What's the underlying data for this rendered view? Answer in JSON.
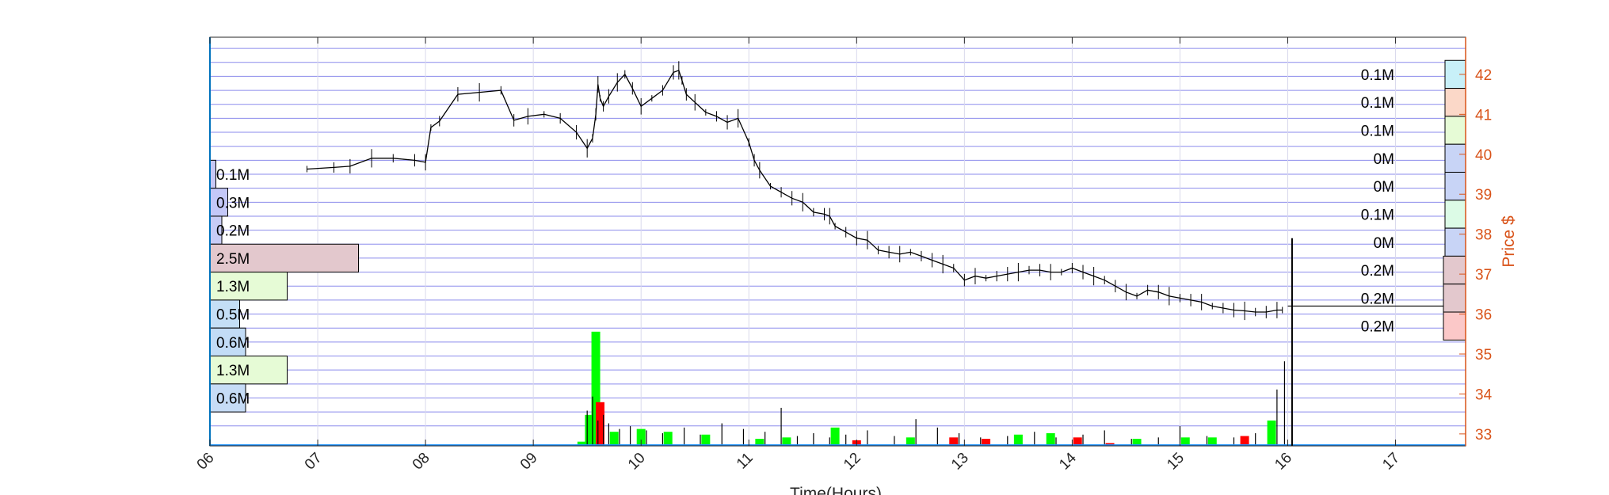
{
  "chart_data": {
    "type": "line",
    "title": "",
    "xlabel": "Time(Hours)",
    "ylabel": "Price $",
    "x_ticks": [
      "06",
      "07",
      "08",
      "09",
      "10",
      "11",
      "12",
      "13",
      "14",
      "15",
      "16",
      "17"
    ],
    "y_ticks": [
      33,
      34,
      35,
      36,
      37,
      38,
      39,
      40,
      41,
      42
    ],
    "xlim": [
      6.0,
      17.65
    ],
    "ylim": [
      32.7,
      42.93
    ],
    "grid": true,
    "colors": {
      "price": "#000000",
      "price_axis": "#d95319",
      "grid": "#6f6fe8",
      "volume_up": "#00ff00",
      "volume_down": "#ff0000"
    },
    "price_series": {
      "x": [
        6.9,
        7.15,
        7.3,
        7.5,
        7.7,
        7.9,
        8.0,
        8.05,
        8.13,
        8.3,
        8.5,
        8.7,
        8.82,
        8.95,
        9.1,
        9.25,
        9.4,
        9.5,
        9.55,
        9.58,
        9.6,
        9.62,
        9.65,
        9.7,
        9.78,
        9.85,
        9.92,
        10.0,
        10.1,
        10.2,
        10.3,
        10.35,
        10.38,
        10.42,
        10.5,
        10.6,
        10.7,
        10.8,
        10.9,
        11.0,
        11.05,
        11.1,
        11.2,
        11.3,
        11.4,
        11.5,
        11.6,
        11.7,
        11.75,
        11.8,
        11.9,
        12.0,
        12.1,
        12.2,
        12.3,
        12.4,
        12.5,
        12.6,
        12.7,
        12.8,
        12.9,
        13.0,
        13.1,
        13.2,
        13.3,
        13.4,
        13.5,
        13.6,
        13.7,
        13.8,
        13.9,
        14.0,
        14.1,
        14.2,
        14.3,
        14.4,
        14.5,
        14.6,
        14.7,
        14.8,
        14.9,
        15.0,
        15.1,
        15.2,
        15.3,
        15.4,
        15.5,
        15.6,
        15.7,
        15.8,
        15.9,
        15.95
      ],
      "y": [
        39.63,
        39.67,
        39.7,
        39.9,
        39.9,
        39.85,
        39.8,
        40.67,
        40.83,
        41.5,
        41.55,
        41.6,
        40.85,
        40.95,
        41.0,
        40.9,
        40.55,
        40.15,
        40.4,
        41.0,
        41.75,
        41.4,
        41.2,
        41.45,
        41.8,
        42.0,
        41.65,
        41.2,
        41.4,
        41.6,
        42.05,
        42.1,
        41.85,
        41.5,
        41.3,
        41.05,
        40.95,
        40.8,
        40.9,
        40.3,
        39.85,
        39.6,
        39.2,
        39.05,
        38.9,
        38.8,
        38.55,
        38.5,
        38.45,
        38.2,
        38.05,
        37.9,
        37.85,
        37.6,
        37.55,
        37.5,
        37.55,
        37.45,
        37.35,
        37.25,
        37.15,
        36.85,
        36.95,
        36.9,
        36.95,
        37.0,
        37.05,
        37.1,
        37.1,
        37.05,
        37.05,
        37.15,
        37.05,
        36.95,
        36.85,
        36.7,
        36.55,
        36.45,
        36.6,
        36.55,
        36.45,
        36.4,
        36.35,
        36.3,
        36.2,
        36.15,
        36.1,
        36.08,
        36.05,
        36.05,
        36.1,
        36.1
      ]
    },
    "volume_series": {
      "up": [
        {
          "x": 9.45,
          "v": 0.3
        },
        {
          "x": 9.52,
          "v": 2.2
        },
        {
          "x": 9.58,
          "v": 8.1
        },
        {
          "x": 9.75,
          "v": 1.0
        },
        {
          "x": 10.0,
          "v": 1.2
        },
        {
          "x": 10.25,
          "v": 1.0
        },
        {
          "x": 10.6,
          "v": 0.8
        },
        {
          "x": 11.1,
          "v": 0.5
        },
        {
          "x": 11.35,
          "v": 0.6
        },
        {
          "x": 11.8,
          "v": 1.3
        },
        {
          "x": 12.5,
          "v": 0.6
        },
        {
          "x": 13.5,
          "v": 0.8
        },
        {
          "x": 13.8,
          "v": 0.9
        },
        {
          "x": 14.6,
          "v": 0.5
        },
        {
          "x": 15.05,
          "v": 0.6
        },
        {
          "x": 15.3,
          "v": 0.6
        },
        {
          "x": 15.85,
          "v": 1.8
        }
      ],
      "down": [
        {
          "x": 9.62,
          "v": 3.1
        },
        {
          "x": 12.0,
          "v": 0.4
        },
        {
          "x": 12.9,
          "v": 0.6
        },
        {
          "x": 13.2,
          "v": 0.5
        },
        {
          "x": 14.05,
          "v": 0.6
        },
        {
          "x": 14.35,
          "v": 0.2
        },
        {
          "x": 15.6,
          "v": 0.7
        }
      ]
    },
    "volume_profile_left": [
      {
        "price": 39.5,
        "label": "0.1M",
        "value": 0.1,
        "color": "#c8c8f5"
      },
      {
        "price": 38.8,
        "label": "0.3M",
        "value": 0.3,
        "color": "#c4c8f8"
      },
      {
        "price": 38.1,
        "label": "0.2M",
        "value": 0.2,
        "color": "#c8ccf6"
      },
      {
        "price": 37.4,
        "label": "2.5M",
        "value": 2.5,
        "color": "#e3c8cd"
      },
      {
        "price": 36.7,
        "label": "1.3M",
        "value": 1.3,
        "color": "#e6fbd6"
      },
      {
        "price": 36.0,
        "label": "0.5M",
        "value": 0.5,
        "color": "#c4dff6"
      },
      {
        "price": 35.3,
        "label": "0.6M",
        "value": 0.6,
        "color": "#c2dcf6"
      },
      {
        "price": 34.6,
        "label": "1.3M",
        "value": 1.3,
        "color": "#e6fbd6"
      },
      {
        "price": 33.9,
        "label": "0.6M",
        "value": 0.6,
        "color": "#c6dcf6"
      }
    ],
    "volume_profile_right": [
      {
        "price": 42.0,
        "label": "0.1M",
        "value": 0.1,
        "color": "#c8f0f8"
      },
      {
        "price": 41.3,
        "label": "0.1M",
        "value": 0.1,
        "color": "#fbd8c8"
      },
      {
        "price": 40.6,
        "label": "0.1M",
        "value": 0.1,
        "color": "#e6fbd6"
      },
      {
        "price": 39.9,
        "label": "0M",
        "value": 0.05,
        "color": "#c8d4f6"
      },
      {
        "price": 39.2,
        "label": "0M",
        "value": 0.05,
        "color": "#c8d4f6"
      },
      {
        "price": 38.5,
        "label": "0.1M",
        "value": 0.1,
        "color": "#dcfbe6"
      },
      {
        "price": 37.8,
        "label": "0M",
        "value": 0.05,
        "color": "#c8d4f6"
      },
      {
        "price": 37.1,
        "label": "0.2M",
        "value": 0.2,
        "color": "#e3c8cd"
      },
      {
        "price": 36.4,
        "label": "0.2M",
        "value": 0.2,
        "color": "#e3c8cd"
      },
      {
        "price": 35.7,
        "label": "0.2M",
        "value": 0.2,
        "color": "#fbc8c8"
      }
    ],
    "close_line": {
      "price": 36.2,
      "from_x": 16.0
    },
    "close_spike": {
      "x": 16.04,
      "low": 32.7,
      "high": 37.9
    }
  }
}
